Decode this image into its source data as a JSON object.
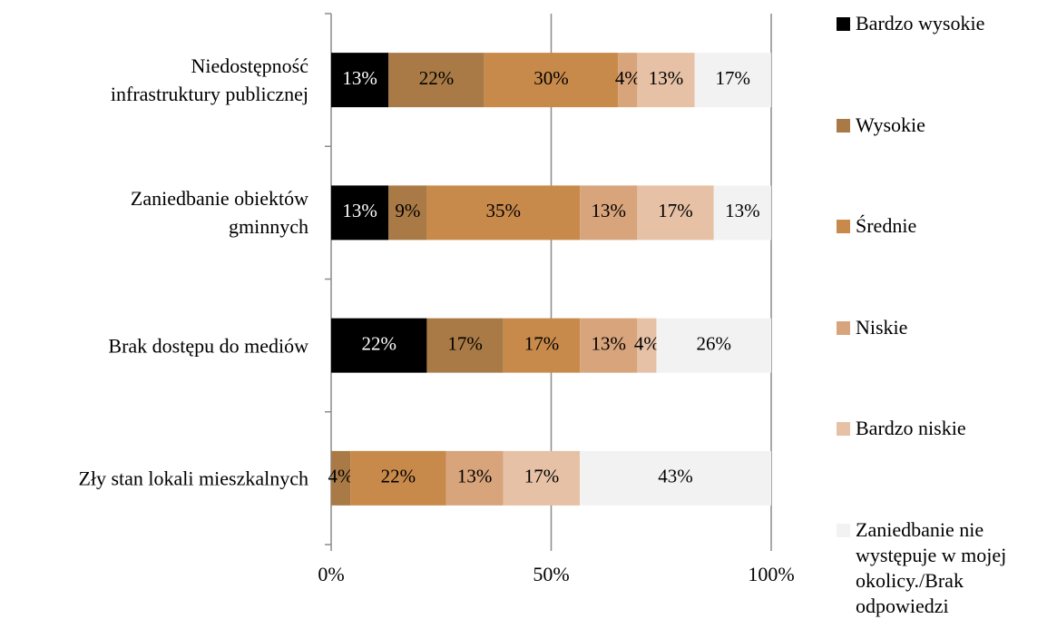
{
  "chart_data": {
    "type": "stacked-bar-horizontal",
    "categories": [
      "Niedostępność\ninfrastruktury publicznej",
      "Zaniedbanie obiektów\ngminnych",
      "Brak dostępu do mediów",
      "Zły stan lokali mieszkalnych"
    ],
    "series": [
      {
        "name": "Bardzo wysokie",
        "color": "#000000",
        "values": [
          13.04,
          13.04,
          21.74,
          0
        ],
        "value_labels": [
          "13%",
          "13%",
          "22%",
          null
        ]
      },
      {
        "name": "Wysokie",
        "color": "#a97a45",
        "values": [
          21.74,
          8.7,
          17.39,
          4.35
        ],
        "value_labels": [
          "22%",
          "9%",
          "17%",
          "4%"
        ]
      },
      {
        "name": "Średnie",
        "color": "#c88a4b",
        "values": [
          30.43,
          34.78,
          17.39,
          21.74
        ],
        "value_labels": [
          "30%",
          "35%",
          "17%",
          "22%"
        ]
      },
      {
        "name": "Niskie",
        "color": "#d8a47b",
        "values": [
          4.35,
          13.04,
          13.04,
          13.04
        ],
        "value_labels": [
          "4%",
          "13%",
          "13%",
          "13%"
        ]
      },
      {
        "name": "Bardzo niskie",
        "color": "#e6c1a5",
        "values": [
          13.04,
          17.39,
          4.35,
          17.39
        ],
        "value_labels": [
          "13%",
          "17%",
          "4%",
          "17%"
        ]
      },
      {
        "name": "Zaniedbanie nie występuje w mojej okolicy./Brak odpowiedzi",
        "color": "#f2f2f2",
        "values": [
          17.39,
          13.04,
          26.09,
          43.48
        ],
        "value_labels": [
          "17%",
          "13%",
          "26%",
          "43%"
        ]
      }
    ],
    "xlim": [
      0,
      100
    ],
    "xticks": [
      {
        "value": 0,
        "label": "0%"
      },
      {
        "value": 50,
        "label": "50%"
      },
      {
        "value": 100,
        "label": "100%"
      }
    ],
    "grid": true,
    "legend": "right"
  }
}
